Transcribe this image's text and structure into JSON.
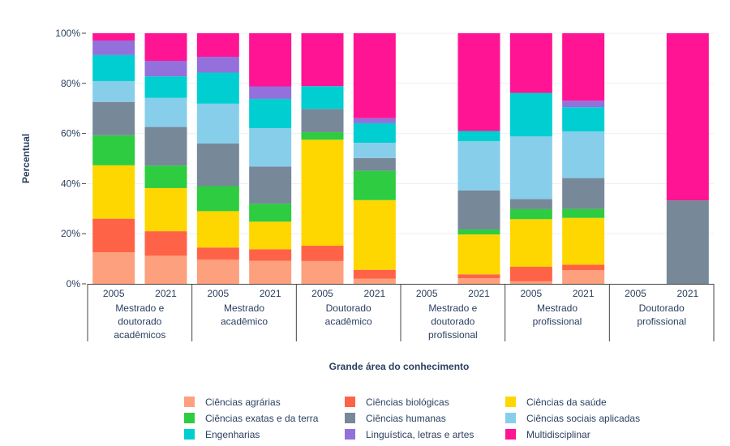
{
  "chart_data": {
    "type": "bar",
    "stacked": true,
    "ylabel": "Percentual",
    "xlabel": "Grande área do conhecimento",
    "ylim": [
      0,
      100
    ],
    "yticks": [
      "0%",
      "20%",
      "40%",
      "60%",
      "80%",
      "100%"
    ],
    "groups": [
      {
        "label": [
          "Mestrado e",
          "doutorado",
          "acadêmicos"
        ],
        "bars": [
          "2005",
          "2021"
        ]
      },
      {
        "label": [
          "Mestrado",
          "acadêmico"
        ],
        "bars": [
          "2005",
          "2021"
        ]
      },
      {
        "label": [
          "Doutorado",
          "acadêmico"
        ],
        "bars": [
          "2005",
          "2021"
        ]
      },
      {
        "label": [
          "Mestrado e",
          "doutorado",
          "profissional"
        ],
        "bars": [
          "2005",
          "2021"
        ]
      },
      {
        "label": [
          "Mestrado",
          "profissional"
        ],
        "bars": [
          "2005",
          "2021"
        ]
      },
      {
        "label": [
          "Doutorado",
          "profissional"
        ],
        "bars": [
          "2005",
          "2021"
        ]
      }
    ],
    "series": [
      {
        "name": "Ciências agrárias",
        "color": "#fda07e",
        "values": [
          12.6,
          11.2,
          9.6,
          9.2,
          9.1,
          2.1,
          0,
          2.2,
          1.0,
          5.5,
          0,
          0
        ]
      },
      {
        "name": "Ciências biológicas",
        "color": "#ff6347",
        "values": [
          13.4,
          9.8,
          4.9,
          4.6,
          6.1,
          3.5,
          0,
          1.6,
          5.8,
          2.1,
          0,
          0
        ]
      },
      {
        "name": "Ciências da saúde",
        "color": "#ffd700",
        "values": [
          21.3,
          17.2,
          14.5,
          11.0,
          42.3,
          27.8,
          0,
          15.9,
          19.0,
          18.7,
          0,
          0
        ]
      },
      {
        "name": "Ciências exatas e da terra",
        "color": "#2ecc40",
        "values": [
          12.0,
          9.0,
          10.0,
          7.2,
          3.0,
          11.7,
          0,
          2.0,
          4.0,
          3.6,
          0,
          0
        ]
      },
      {
        "name": "Ciências humanas",
        "color": "#778899",
        "values": [
          13.3,
          15.4,
          17.0,
          14.8,
          9.3,
          5.1,
          0,
          15.6,
          4.0,
          12.3,
          0,
          33.3
        ]
      },
      {
        "name": "Ciências sociais aplicadas",
        "color": "#87ceeb",
        "values": [
          8.3,
          11.6,
          15.9,
          15.3,
          0,
          6.1,
          0,
          19.6,
          25.0,
          18.6,
          0,
          0
        ]
      },
      {
        "name": "Engenharias",
        "color": "#00ced1",
        "values": [
          10.4,
          8.6,
          12.4,
          11.7,
          9.1,
          7.8,
          0,
          4.1,
          17.4,
          9.7,
          0,
          0
        ]
      },
      {
        "name": "Linguística, letras e artes",
        "color": "#9370db",
        "values": [
          5.8,
          6.2,
          6.3,
          5.0,
          0,
          2.0,
          0,
          0,
          0,
          2.6,
          0,
          0
        ]
      },
      {
        "name": "Multidisciplinar",
        "color": "#ff1493",
        "values": [
          2.9,
          11.0,
          9.4,
          21.2,
          21.1,
          33.9,
          0,
          39.0,
          23.8,
          26.9,
          0,
          66.7
        ]
      }
    ],
    "legend_position": "bottom",
    "grid": true
  }
}
